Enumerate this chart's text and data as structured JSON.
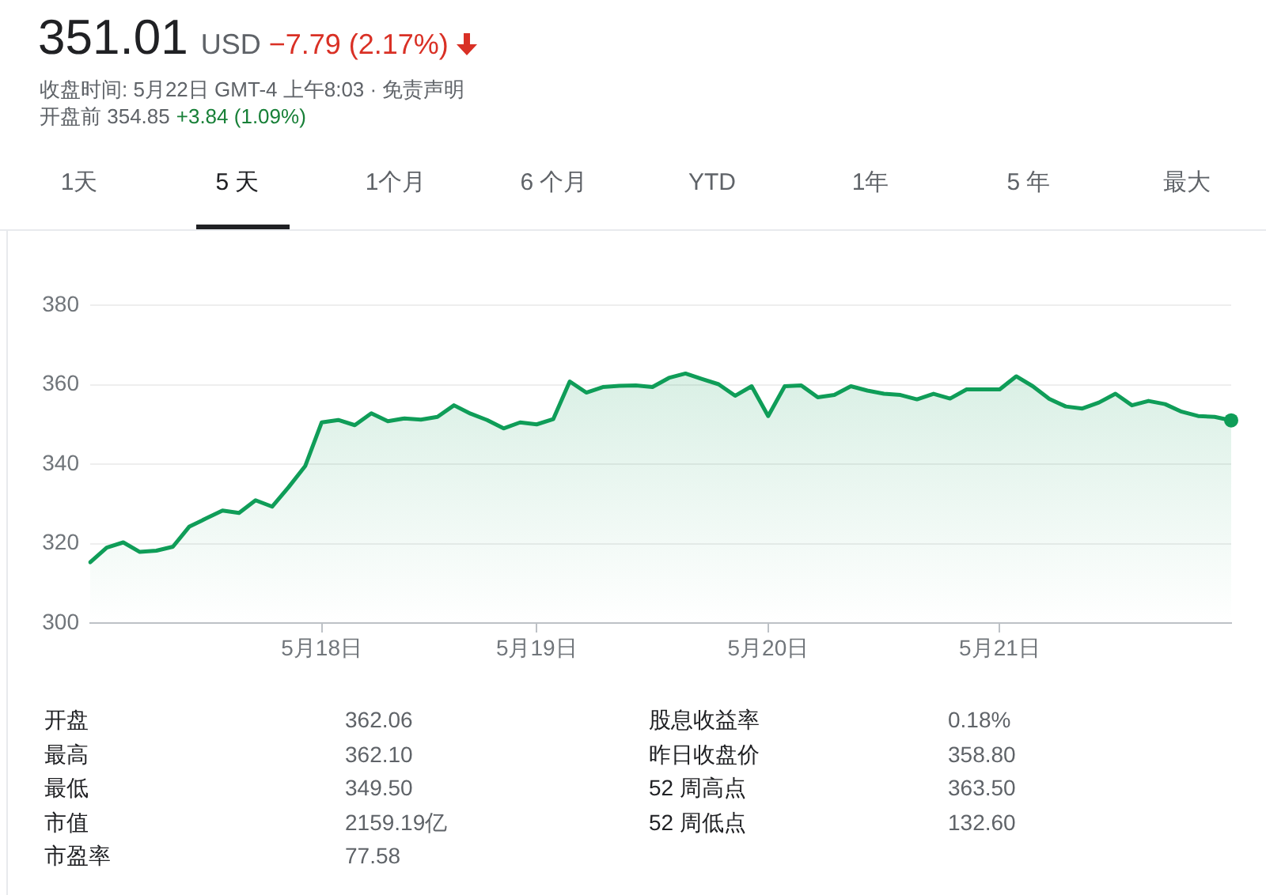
{
  "chart_data": {
    "type": "area",
    "title": "351.01",
    "subtitle": "收盘时间: 5月22日 GMT-4 上午8:03 · 免责声明",
    "categories": [
      null,
      null,
      null,
      null,
      null,
      null,
      null,
      null,
      null,
      null,
      null,
      null,
      null,
      null,
      "5月18日",
      null,
      null,
      null,
      null,
      null,
      null,
      null,
      null,
      null,
      null,
      null,
      null,
      "5月19日",
      null,
      null,
      null,
      null,
      null,
      null,
      null,
      null,
      null,
      null,
      null,
      null,
      null,
      "5月20日",
      null,
      null,
      null,
      null,
      null,
      null,
      null,
      null,
      null,
      null,
      null,
      null,
      null,
      "5月21日",
      null,
      null,
      null,
      null,
      null,
      null,
      null,
      null,
      null,
      null,
      null,
      null,
      null,
      null
    ],
    "series": [
      {
        "color": "#0f9d58",
        "values": [
          315.3,
          319.0,
          320.3,
          317.9,
          318.2,
          319.2,
          324.3,
          326.3,
          328.3,
          327.7,
          330.9,
          329.3,
          334.2,
          339.5,
          350.5,
          351.1,
          349.8,
          352.8,
          350.8,
          351.5,
          351.2,
          351.9,
          354.8,
          352.7,
          351.1,
          349.0,
          350.5,
          350.0,
          351.3,
          360.8,
          358.0,
          359.4,
          359.7,
          359.8,
          359.4,
          361.7,
          362.8,
          361.4,
          360.1,
          357.2,
          359.6,
          352.1,
          359.6,
          359.8,
          356.8,
          357.4,
          359.6,
          358.5,
          357.7,
          357.4,
          356.3,
          357.7,
          356.5,
          358.8,
          358.8,
          358.8,
          362.1,
          359.6,
          356.4,
          354.5,
          354.0,
          355.5,
          357.7,
          354.8,
          355.9,
          355.1,
          353.2,
          352.1,
          351.9,
          351.0
        ]
      },
      {
        "type": "scatter",
        "marker": "circle",
        "color": "#0f9d58",
        "values": [
          null,
          null,
          null,
          null,
          null,
          null,
          null,
          null,
          null,
          null,
          null,
          null,
          null,
          null,
          null,
          null,
          null,
          null,
          null,
          null,
          null,
          null,
          null,
          null,
          null,
          null,
          null,
          null,
          null,
          null,
          null,
          null,
          null,
          null,
          null,
          null,
          null,
          null,
          null,
          null,
          null,
          null,
          null,
          null,
          null,
          null,
          null,
          null,
          null,
          null,
          null,
          null,
          null,
          null,
          null,
          null,
          null,
          null,
          null,
          null,
          null,
          null,
          null,
          null,
          null,
          null,
          null,
          null,
          null,
          351.0
        ]
      }
    ],
    "ylim": [
      300,
      380
    ],
    "yticks": [
      300,
      320,
      340,
      360,
      380
    ],
    "grid": "y",
    "legend": false,
    "marker": "none",
    "annotations": [
      "USD",
      "−7.79 (2.17%)",
      "开盘前 354.85",
      "+3.84 (1.09%)",
      "1天",
      "5 天",
      "1个月",
      "6 个月",
      "YTD",
      "1年",
      "5 年",
      "最大",
      "开盘",
      "362.06",
      "最高",
      "362.10",
      "最低",
      "349.50",
      "市值",
      "2159.19亿",
      "市盈率",
      "77.58",
      "股息收益率",
      "0.18%",
      "昨日收盘价",
      "358.80",
      "52 周高点",
      "363.50",
      "52 周低点",
      "132.60"
    ]
  }
}
